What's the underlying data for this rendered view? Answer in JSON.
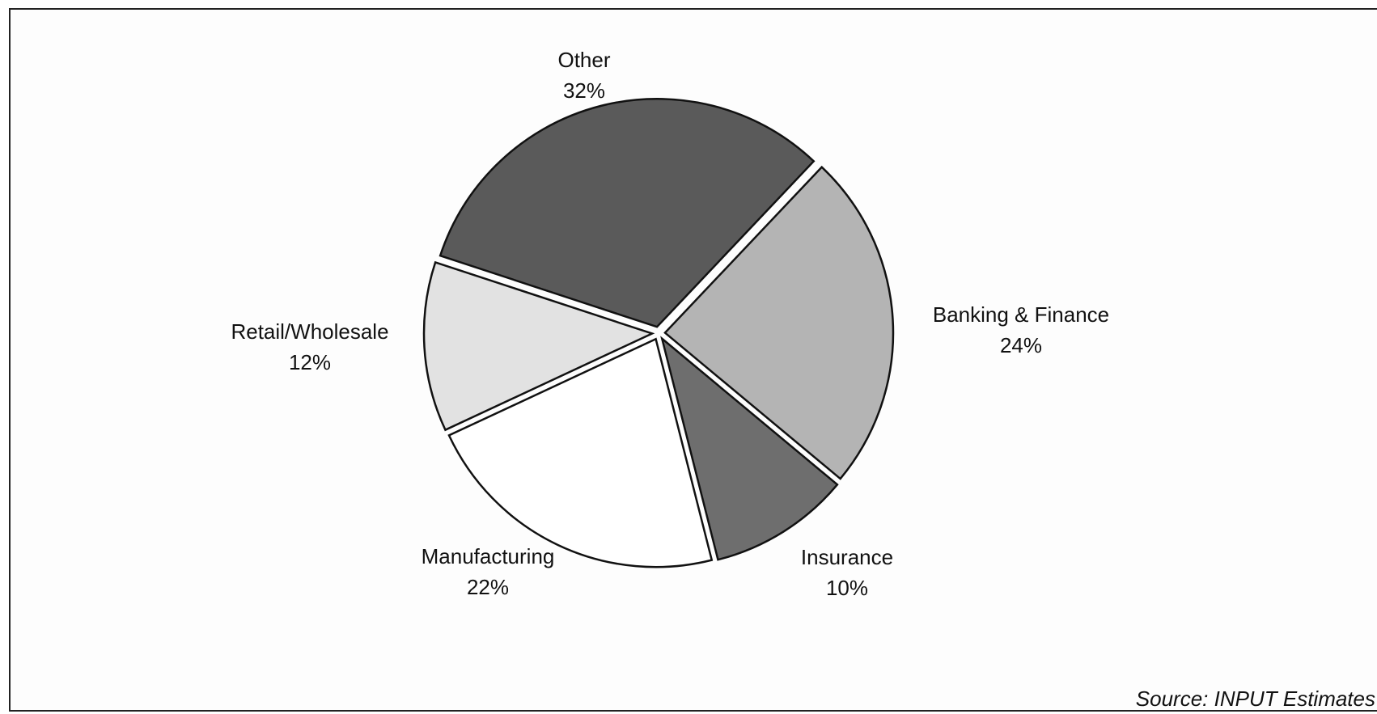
{
  "chart_data": {
    "type": "pie",
    "categories": [
      "Other",
      "Banking & Finance",
      "Insurance",
      "Manufacturing",
      "Retail/Wholesale"
    ],
    "values": [
      32,
      24,
      10,
      22,
      12
    ],
    "value_labels": [
      "32%",
      "24%",
      "10%",
      "22%",
      "12%"
    ],
    "colors": [
      "#5a5a5a",
      "#b4b4b4",
      "#6e6e6e",
      "#ffffff",
      "#e2e2e2"
    ],
    "source": "Source: INPUT Estimates"
  }
}
